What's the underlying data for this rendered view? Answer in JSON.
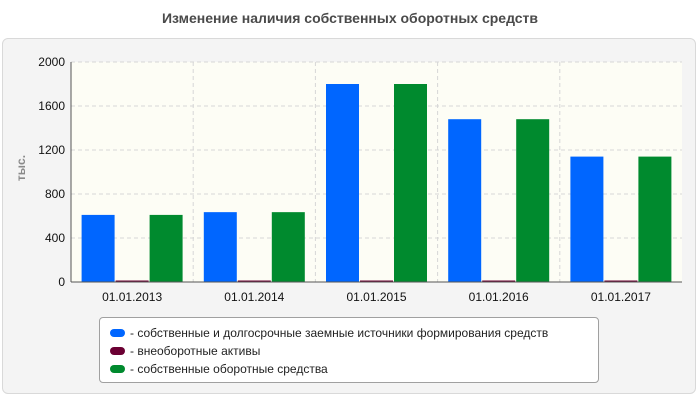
{
  "chart_data": {
    "type": "bar",
    "title": "Изменение наличия собственных оборотных средств",
    "ylabel": "тыс.",
    "xlabel": "",
    "categories": [
      "01.01.2013",
      "01.01.2014",
      "01.01.2015",
      "01.01.2016",
      "01.01.2017"
    ],
    "ylim": [
      0,
      2000
    ],
    "yticks": [
      0,
      400,
      800,
      1200,
      1600,
      2000
    ],
    "grid": true,
    "legend_position": "bottom",
    "series": [
      {
        "name": "- собственные и долгосрочные заемные источники формирования средств",
        "color": "#0066ff",
        "values": [
          610,
          635,
          1800,
          1480,
          1140
        ]
      },
      {
        "name": "- внеоборотные активы",
        "color": "#6b0033",
        "values": [
          5,
          5,
          5,
          5,
          5
        ]
      },
      {
        "name": "- собственные оборотные средства",
        "color": "#008a2e",
        "values": [
          610,
          635,
          1800,
          1480,
          1140
        ]
      }
    ]
  }
}
